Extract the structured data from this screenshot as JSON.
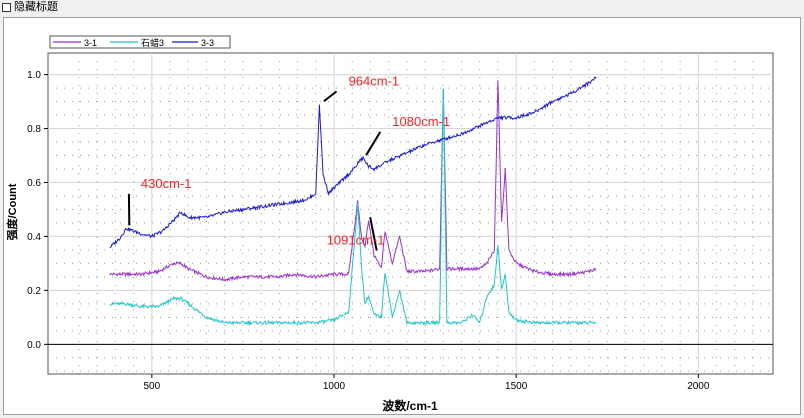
{
  "toolbar": {
    "hide_title_label": "隐藏标题"
  },
  "chart_data": {
    "type": "line",
    "title": "",
    "xlabel": "波数/cm-1",
    "ylabel": "强度/Count",
    "xlim": [
      215,
      2205
    ],
    "ylim": [
      -0.11,
      1.08
    ],
    "x_ticks": [
      500,
      1000,
      1500,
      2000
    ],
    "x_tick_labels": [
      "500",
      "1000",
      "1500",
      "2000"
    ],
    "y_ticks": [
      0.0,
      0.2,
      0.4,
      0.6,
      0.8,
      1.0
    ],
    "y_tick_labels": [
      "0.0",
      "0.2",
      "0.4",
      "0.6",
      "0.8",
      "1.0"
    ],
    "grid": true,
    "legend_position": "top-left",
    "series": [
      {
        "name": "3-1",
        "color": "#9b30d0",
        "x": [
          385,
          430,
          470,
          520,
          560,
          580,
          600,
          650,
          700,
          750,
          800,
          850,
          890,
          950,
          1000,
          1040,
          1065,
          1075,
          1085,
          1095,
          1110,
          1130,
          1140,
          1160,
          1180,
          1200,
          1250,
          1290,
          1300,
          1310,
          1350,
          1400,
          1420,
          1440,
          1450,
          1460,
          1470,
          1480,
          1500,
          1550,
          1600,
          1650,
          1700,
          1720
        ],
        "y": [
          0.26,
          0.26,
          0.26,
          0.27,
          0.3,
          0.3,
          0.28,
          0.25,
          0.24,
          0.25,
          0.25,
          0.25,
          0.26,
          0.25,
          0.26,
          0.26,
          0.53,
          0.4,
          0.36,
          0.46,
          0.33,
          0.28,
          0.42,
          0.3,
          0.4,
          0.27,
          0.27,
          0.28,
          0.95,
          0.28,
          0.28,
          0.28,
          0.3,
          0.35,
          0.98,
          0.45,
          0.65,
          0.35,
          0.3,
          0.27,
          0.26,
          0.26,
          0.27,
          0.28
        ]
      },
      {
        "name": "石蜡3",
        "color": "#1fc8c8",
        "x": [
          385,
          430,
          470,
          520,
          560,
          580,
          600,
          650,
          700,
          750,
          800,
          850,
          890,
          950,
          1000,
          1040,
          1065,
          1075,
          1085,
          1095,
          1110,
          1130,
          1140,
          1160,
          1180,
          1200,
          1250,
          1290,
          1300,
          1310,
          1350,
          1380,
          1400,
          1420,
          1440,
          1450,
          1460,
          1470,
          1480,
          1500,
          1550,
          1600,
          1650,
          1700,
          1720
        ],
        "y": [
          0.15,
          0.15,
          0.14,
          0.14,
          0.17,
          0.17,
          0.15,
          0.1,
          0.08,
          0.08,
          0.08,
          0.08,
          0.08,
          0.08,
          0.09,
          0.12,
          0.52,
          0.3,
          0.15,
          0.18,
          0.11,
          0.1,
          0.27,
          0.1,
          0.2,
          0.08,
          0.08,
          0.08,
          0.95,
          0.08,
          0.08,
          0.11,
          0.08,
          0.18,
          0.22,
          0.37,
          0.2,
          0.26,
          0.12,
          0.09,
          0.08,
          0.08,
          0.08,
          0.08,
          0.08
        ]
      },
      {
        "name": "3-3",
        "color": "#1a1ad6",
        "x": [
          385,
          410,
          430,
          450,
          470,
          500,
          530,
          560,
          580,
          600,
          650,
          700,
          750,
          800,
          850,
          900,
          930,
          950,
          960,
          970,
          985,
          1000,
          1040,
          1060,
          1070,
          1080,
          1095,
          1110,
          1150,
          1200,
          1250,
          1300,
          1350,
          1400,
          1450,
          1500,
          1550,
          1600,
          1650,
          1700,
          1720
        ],
        "y": [
          0.36,
          0.39,
          0.43,
          0.42,
          0.41,
          0.4,
          0.42,
          0.46,
          0.49,
          0.47,
          0.47,
          0.49,
          0.5,
          0.51,
          0.52,
          0.53,
          0.54,
          0.56,
          0.89,
          0.63,
          0.56,
          0.58,
          0.63,
          0.66,
          0.68,
          0.69,
          0.66,
          0.65,
          0.68,
          0.71,
          0.74,
          0.76,
          0.78,
          0.81,
          0.84,
          0.84,
          0.86,
          0.9,
          0.93,
          0.97,
          0.99
        ]
      }
    ],
    "annotations": [
      {
        "text": "430cm-1",
        "x": 430,
        "y": 0.43,
        "text_x": 470,
        "text_y": 0.58
      },
      {
        "text": "964cm-1",
        "x": 964,
        "y": 0.89,
        "text_x": 1040,
        "text_y": 0.96
      },
      {
        "text": "1080cm-1",
        "x": 1080,
        "y": 0.69,
        "text_x": 1160,
        "text_y": 0.81
      },
      {
        "text": "1091cm-1",
        "x": 1091,
        "y": 0.46,
        "text_x": 980,
        "text_y": 0.37
      }
    ],
    "annotation_color": "#ff2020"
  }
}
